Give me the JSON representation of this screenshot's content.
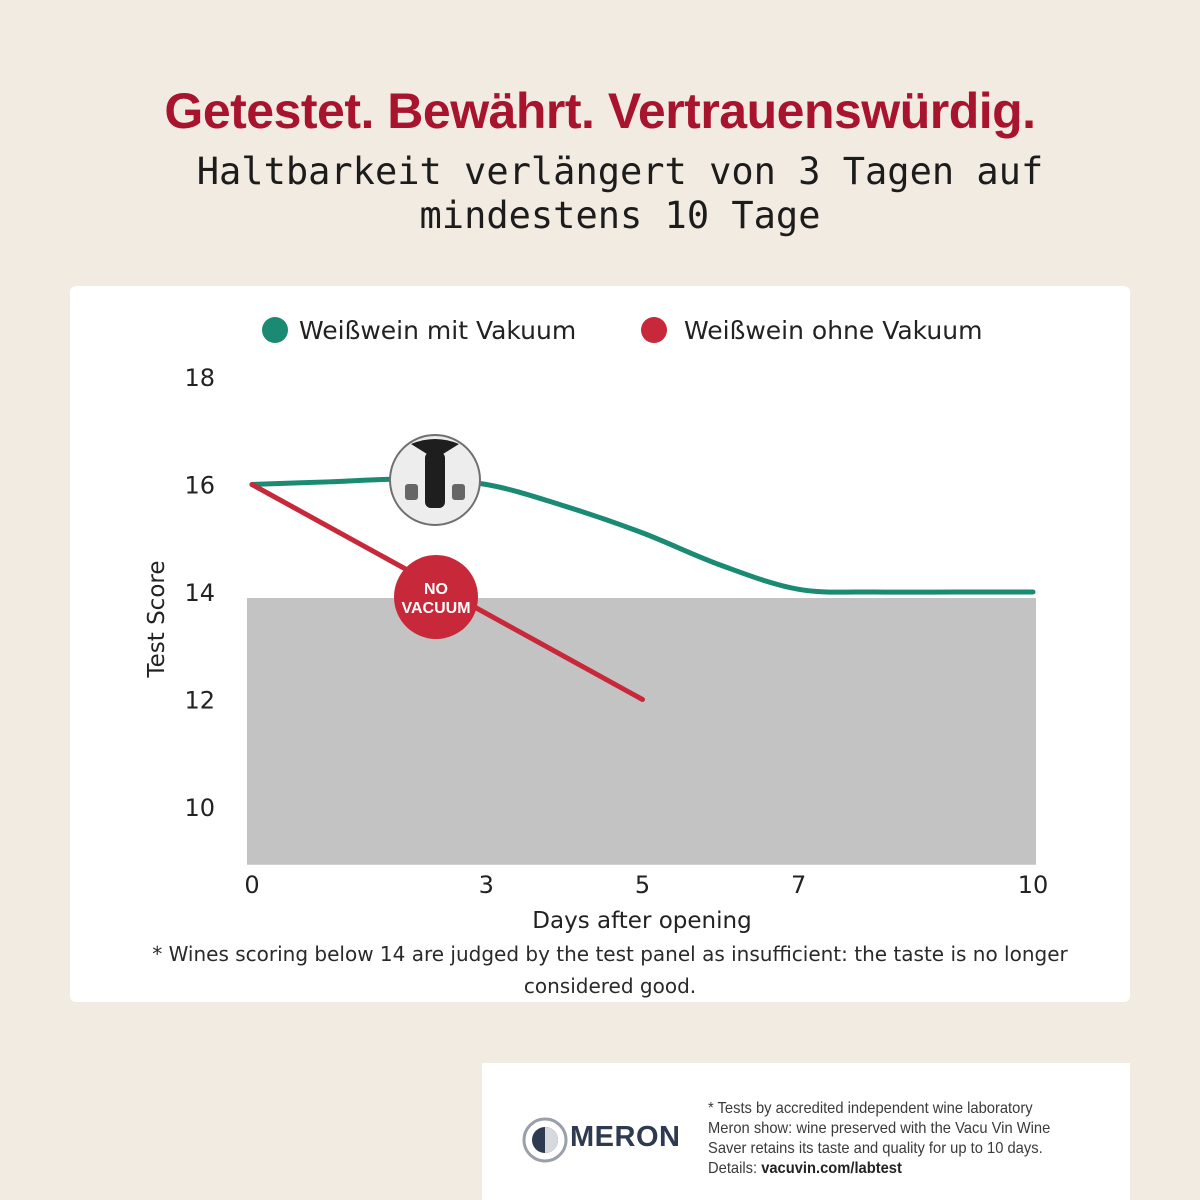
{
  "header": {
    "headline": "Getestet. Bewährt. Vertrauenswürdig.",
    "subheadline_line1": "Haltbarkeit verlängert von 3 Tagen auf",
    "subheadline_line2": "mindestens 10 Tage"
  },
  "colors": {
    "accent_red": "#a8132d",
    "series_vacuum": "#1a8a72",
    "series_no_vacuum": "#c7283a",
    "insufficient_zone": "#c4c3c3",
    "background": "#f2ebe1"
  },
  "chart_data": {
    "type": "line",
    "xlabel": "Days after opening",
    "ylabel": "Test Score",
    "x_ticks": [
      0,
      3,
      5,
      7,
      10
    ],
    "y_ticks": [
      10,
      12,
      14,
      16,
      18
    ],
    "xlim": [
      0,
      10
    ],
    "ylim": [
      9,
      18
    ],
    "grid": false,
    "legend_position": "top",
    "insufficient_threshold": 14,
    "series": [
      {
        "name": "Weißwein mit Vakuum",
        "color": "#1a8a72",
        "points": [
          [
            0,
            16.0
          ],
          [
            1,
            16.05
          ],
          [
            2,
            16.1
          ],
          [
            3,
            16.0
          ],
          [
            4,
            15.6
          ],
          [
            5,
            15.1
          ],
          [
            6,
            14.5
          ],
          [
            7,
            14.05
          ],
          [
            8,
            14.0
          ],
          [
            9,
            14.0
          ],
          [
            10,
            14.0
          ]
        ]
      },
      {
        "name": "Weißwein ohne Vakuum",
        "color": "#c7283a",
        "points": [
          [
            0,
            16.0
          ],
          [
            5,
            12.0
          ]
        ]
      }
    ],
    "badges": {
      "no_vacuum_line1": "NO",
      "no_vacuum_line2": "VACUUM",
      "product_icon": "wine-saver-pump-icon"
    }
  },
  "footnote": {
    "text": "* Wines scoring below 14 are judged by the test panel as insufficient: the taste is no longer considered good."
  },
  "source": {
    "logo_icon": "meron-logo-icon",
    "name": "MERON",
    "text": "* Tests by accredited independent wine laboratory Meron show: wine preserved with the Vacu Vin Wine Saver retains its taste and quality for up to 10 days. Details:",
    "link": "vacuvin.com/labtest"
  }
}
